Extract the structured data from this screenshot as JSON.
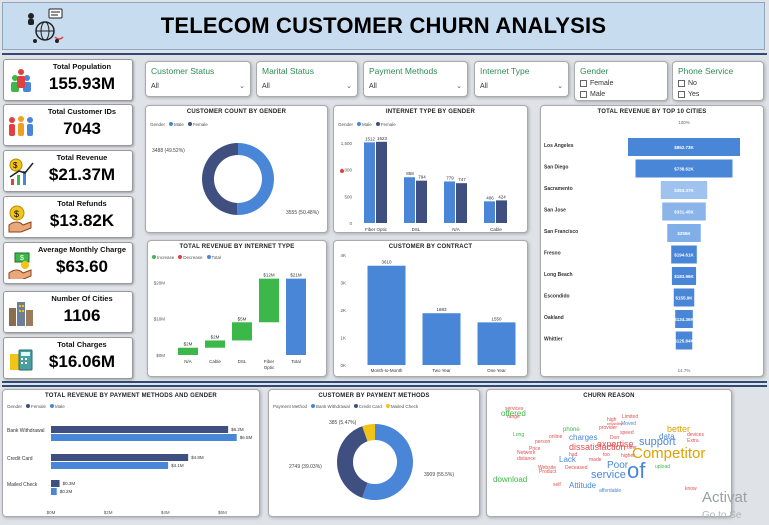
{
  "header": {
    "title": "TELECOM CUSTOMER CHURN ANALYSIS"
  },
  "kpis": [
    {
      "label": "Total Population",
      "value": "155.93M",
      "icon": "people-icon"
    },
    {
      "label": "Total Customer IDs",
      "value": "7043",
      "icon": "group-icon"
    },
    {
      "label": "Total Revenue",
      "value": "$21.37M",
      "icon": "revenue-icon"
    },
    {
      "label": "Total Refunds",
      "value": "$13.82K",
      "icon": "refund-icon"
    },
    {
      "label": "Average Monthly Charge",
      "value": "$63.60",
      "icon": "money-hand-icon"
    },
    {
      "label": "Number Of Cities",
      "value": "1106",
      "icon": "city-icon"
    },
    {
      "label": "Total Charges",
      "value": "$16.06M",
      "icon": "calculator-icon"
    }
  ],
  "slicers": {
    "customer_status": {
      "title": "Customer Status",
      "value": "All"
    },
    "marital_status": {
      "title": "Marital Status",
      "value": "All"
    },
    "payment_methods": {
      "title": "Payment Methods",
      "value": "All"
    },
    "internet_type": {
      "title": "Internet Type",
      "value": "All"
    },
    "gender": {
      "title": "Gender",
      "options": [
        "Female",
        "Male"
      ]
    },
    "phone_service": {
      "title": "Phone Service",
      "options": [
        "No",
        "Yes"
      ]
    }
  },
  "colors": {
    "dark": "#3f4f7f",
    "light": "#4a86d8",
    "green": "#3cb84a",
    "red": "#e04040",
    "yellow": "#f0c419"
  },
  "gender_count": {
    "title": "CUSTOMER COUNT BY GENDER",
    "legend_title": "Gender",
    "legend": [
      "Male",
      "Female"
    ],
    "chart_data": {
      "type": "pie",
      "slices": [
        {
          "label": "Male",
          "value": 3555,
          "label_text": "3555 (50.48%)"
        },
        {
          "label": "Female",
          "value": 3488,
          "label_text": "3488 (49.52%)"
        }
      ]
    }
  },
  "internet_gender": {
    "title": "INTERNET TYPE BY GENDER",
    "legend_title": "Gender",
    "legend": [
      "Male",
      "Female"
    ],
    "chart_data": {
      "type": "bar",
      "categories": [
        "Fiber Optic",
        "DSL",
        "N/A",
        "Cable"
      ],
      "series": [
        {
          "name": "Male",
          "values": [
            1512,
            858,
            779,
            406
          ]
        },
        {
          "name": "Female",
          "values": [
            1523,
            794,
            747,
            424
          ]
        }
      ],
      "ylim": [
        0,
        1500
      ],
      "yticks": [
        "0",
        "500",
        "1,000",
        "1,500"
      ]
    }
  },
  "top_cities": {
    "title": "TOTAL REVENUE BY TOP 10 CITIES",
    "top_pct": "100%",
    "bottom_pct": "14.7%",
    "chart_data": {
      "type": "bar",
      "categories": [
        "Los Angeles",
        "San Diego",
        "Sacramento",
        "San Jose",
        "San Francisco",
        "Fresno",
        "Long Beach",
        "Escondido",
        "Oakland",
        "Whittier"
      ],
      "values": [
        852.73,
        738.62,
        353.37,
        331.45,
        255,
        194.61,
        183.96,
        155.9,
        134.36,
        125.84
      ],
      "value_labels": [
        "$852.73K",
        "$738.62K",
        "$353.37K",
        "$331.45K",
        "$255K",
        "$194.61K",
        "$183.96K",
        "$155.9K",
        "$134.36K",
        "$125.84K"
      ]
    }
  },
  "revenue_internet": {
    "title": "TOTAL REVENUE BY INTERNET TYPE",
    "legend": [
      "Increase",
      "Decrease",
      "Total"
    ],
    "chart_data": {
      "type": "bar",
      "categories": [
        "N/A",
        "Cable",
        "DSL",
        "Fiber Optic",
        "Total"
      ],
      "values": [
        2,
        2,
        5,
        12,
        21
      ],
      "value_labels": [
        "$2M",
        "$2M",
        "$5M",
        "$12M",
        "$21M"
      ],
      "yticks": [
        "$0M",
        "$10M",
        "$20M"
      ],
      "ylim": [
        0,
        22
      ]
    }
  },
  "contract": {
    "title": "CUSTOMER BY CONTRACT",
    "chart_data": {
      "type": "bar",
      "categories": [
        "Month-to-Month",
        "Two Year",
        "One Year"
      ],
      "values": [
        3610,
        1883,
        1550
      ],
      "yticks": [
        "0K",
        "1K",
        "2K",
        "3K",
        "4K"
      ],
      "ylim": [
        0,
        4000
      ]
    }
  },
  "payment_gender": {
    "title": "TOTAL REVENUE BY PAYMENT METHODS AND GENDER",
    "legend_title": "Gender",
    "legend": [
      "Female",
      "Male"
    ],
    "chart_data": {
      "type": "bar",
      "categories": [
        "Bank Withdrawal",
        "Credit Card",
        "Mailed Check"
      ],
      "series": [
        {
          "name": "Female",
          "values": [
            6.2,
            4.8,
            0.3
          ],
          "labels": [
            "$6.2M",
            "$4.8M",
            "$0.3M"
          ]
        },
        {
          "name": "Male",
          "values": [
            6.5,
            4.1,
            0.2
          ],
          "labels": [
            "$6.5M",
            "$4.1M",
            "$0.2M"
          ]
        }
      ],
      "xticks": [
        "$0M",
        "$2M",
        "$4M",
        "$6M"
      ],
      "xlim": [
        0,
        7
      ]
    }
  },
  "payment_pie": {
    "title": "CUSTOMER BY PAYMENT METHODS",
    "legend_title": "Payment Method",
    "legend": [
      "Bank Withdrawal",
      "Credit Card",
      "Mailed Check"
    ],
    "chart_data": {
      "type": "pie",
      "slices": [
        {
          "label": "Bank Withdrawal",
          "value": 3909,
          "label_text": "3909 (55.5%)"
        },
        {
          "label": "Credit Card",
          "value": 2749,
          "label_text": "2749 (39.03%)"
        },
        {
          "label": "Mailed Check",
          "value": 385,
          "label_text": "385 (5.47%)"
        }
      ]
    }
  },
  "churn_reason": {
    "title": "CHURN REASON",
    "words": [
      "of",
      "Competitor",
      "service",
      "support",
      "better",
      "charges",
      "offered",
      "dissatisfaction",
      "Poor",
      "expertise",
      "download",
      "Attitude",
      "Lack",
      "data",
      "phone",
      "provider",
      "speed",
      "Price",
      "Product",
      "Extra",
      "upload",
      "know",
      "affordable",
      "Moved",
      "Limited",
      "reliability",
      "Long",
      "distance",
      "Network",
      "Website",
      "Deceased",
      "made",
      "higher",
      "offer",
      "services",
      "range",
      "person",
      "online",
      "high",
      "Don",
      "devices",
      "self",
      "had",
      "too"
    ]
  },
  "watermark": {
    "line1": "Activat",
    "line2": "Go to Se"
  }
}
